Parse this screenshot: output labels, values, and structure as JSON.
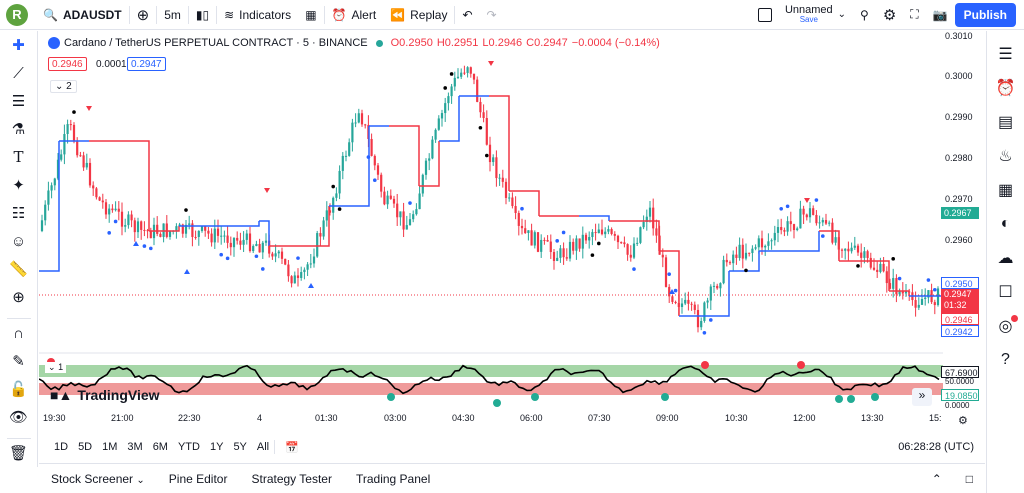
{
  "topbar": {
    "avatar_letter": "R",
    "symbol": "ADAUSDT",
    "interval": "5m",
    "indicators_label": "Indicators",
    "alert_label": "Alert",
    "replay_label": "Replay",
    "layout_name": "Unnamed",
    "layout_status": "Save",
    "publish_label": "Publish"
  },
  "legend": {
    "title": "Cardano / TetherUS PERPETUAL CONTRACT · 5 · BINANCE",
    "open": "O0.2950",
    "high": "H0.2951",
    "low": "L0.2946",
    "close": "C0.2947",
    "change": "−0.0004 (−0.14%)",
    "bid": "0.2946",
    "spread": "0.0001",
    "ask": "0.2947",
    "collapse_count": "2"
  },
  "price_axis": {
    "ticks": [
      "0.3010",
      "0.3000",
      "0.2990",
      "0.2980",
      "0.2970",
      "0.2960"
    ],
    "tag_green": "0.2967",
    "tag_blue_top": "0.2950",
    "tag_last": "0.2947",
    "tag_countdown": "01:32",
    "tag_red": "0.2946",
    "tag_blue_bottom": "0.2942"
  },
  "oscillator": {
    "pane_index": "1",
    "value_top": "67.6900",
    "value_mid": "50.0000",
    "value_bottom": "19.0850",
    "value_zero": "0.0000"
  },
  "time_axis": [
    "19:30",
    "21:00",
    "22:30",
    "4",
    "01:30",
    "03:00",
    "04:30",
    "06:00",
    "07:30",
    "09:00",
    "10:30",
    "12:00",
    "13:30",
    "15:"
  ],
  "range_bar": {
    "ranges": [
      "1D",
      "5D",
      "1M",
      "3M",
      "6M",
      "YTD",
      "1Y",
      "5Y",
      "All"
    ],
    "clock": "06:28:28 (UTC)"
  },
  "bottom_tabs": [
    "Stock Screener",
    "Pine Editor",
    "Strategy Tester",
    "Trading Panel"
  ],
  "brand": "TradingView",
  "colors": {
    "up": "#26a69a",
    "down": "#f23645",
    "accent": "#2962ff",
    "green_tag": "#22ab94"
  }
}
